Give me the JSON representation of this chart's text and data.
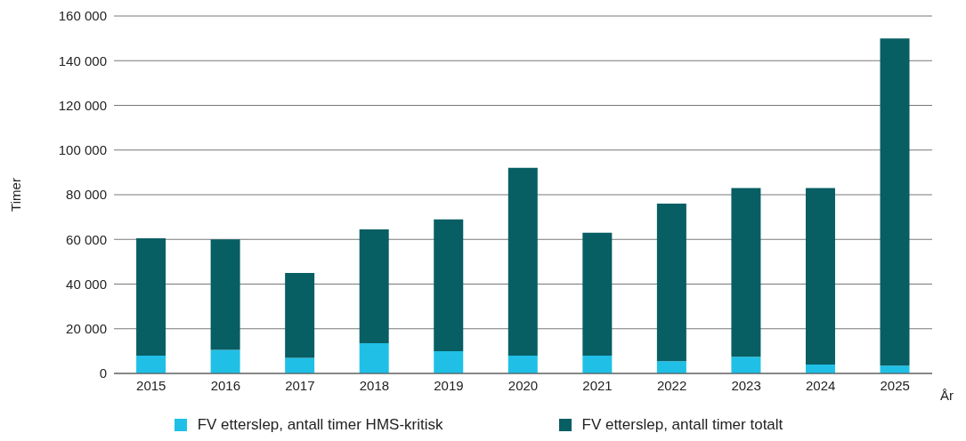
{
  "chart_data": {
    "type": "bar",
    "stacked": true,
    "xlabel": "År",
    "ylabel": "Timer",
    "categories": [
      "2015",
      "2016",
      "2017",
      "2018",
      "2019",
      "2020",
      "2021",
      "2022",
      "2023",
      "2024",
      "2025"
    ],
    "series": [
      {
        "name": "FV etterslep, antall timer HMS-kritisk",
        "color": "#20c0e6",
        "values": [
          8000,
          10500,
          7000,
          13500,
          10000,
          8000,
          8000,
          5500,
          7500,
          4000,
          3500
        ]
      },
      {
        "name": "FV etterslep, antall timer totalt",
        "color": "#075e63",
        "values": [
          52500,
          49500,
          38000,
          51000,
          59000,
          84000,
          55000,
          70500,
          75500,
          79000,
          146500
        ]
      }
    ],
    "ylim": [
      0,
      160000
    ],
    "yticks": [
      0,
      {
        "value": 20000,
        "label": "20 000"
      },
      {
        "value": 40000,
        "label": "40 000"
      },
      {
        "value": 60000,
        "label": "60 000"
      },
      {
        "value": 80000,
        "label": "80 000"
      },
      {
        "value": 100000,
        "label": "100 000"
      },
      {
        "value": 120000,
        "label": "120 000"
      },
      {
        "value": 140000,
        "label": "140 000"
      },
      {
        "value": 160000,
        "label": "160 000"
      }
    ],
    "grid": "y",
    "legend": "bottom"
  }
}
